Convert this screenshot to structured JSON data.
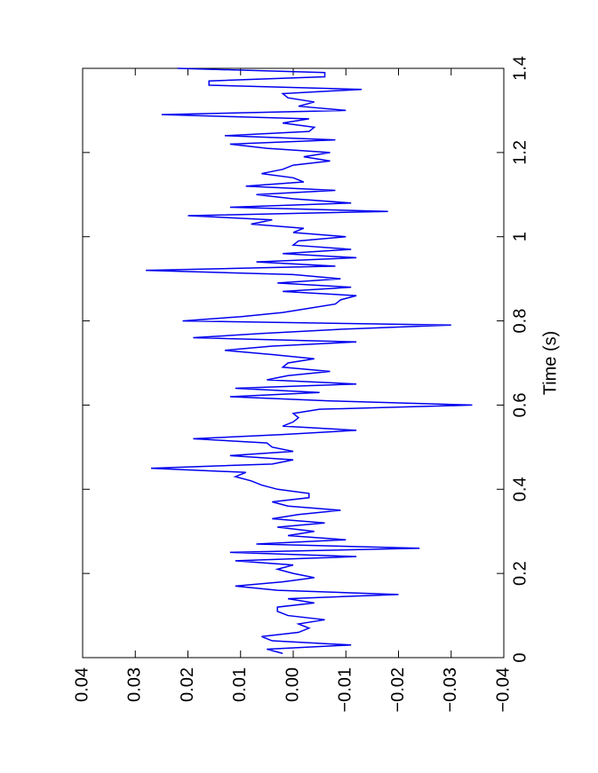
{
  "chart_data": {
    "type": "line",
    "orientation": "rotated",
    "x_label": "Time (s)",
    "x": [
      0.01,
      0.02,
      0.03,
      0.04,
      0.05,
      0.06,
      0.07,
      0.08,
      0.09,
      0.1,
      0.11,
      0.12,
      0.13,
      0.14,
      0.15,
      0.16,
      0.17,
      0.18,
      0.19,
      0.2,
      0.21,
      0.22,
      0.23,
      0.24,
      0.25,
      0.26,
      0.27,
      0.28,
      0.29,
      0.3,
      0.31,
      0.32,
      0.33,
      0.34,
      0.35,
      0.36,
      0.37,
      0.38,
      0.39,
      0.4,
      0.41,
      0.42,
      0.43,
      0.44,
      0.45,
      0.46,
      0.47,
      0.48,
      0.49,
      0.5,
      0.51,
      0.52,
      0.53,
      0.54,
      0.55,
      0.56,
      0.57,
      0.58,
      0.59,
      0.6,
      0.61,
      0.62,
      0.63,
      0.64,
      0.65,
      0.66,
      0.67,
      0.68,
      0.69,
      0.7,
      0.71,
      0.72,
      0.73,
      0.74,
      0.75,
      0.76,
      0.77,
      0.78,
      0.79,
      0.8,
      0.81,
      0.82,
      0.83,
      0.84,
      0.85,
      0.86,
      0.87,
      0.88,
      0.89,
      0.9,
      0.91,
      0.92,
      0.93,
      0.94,
      0.95,
      0.96,
      0.97,
      0.98,
      0.99,
      1.0,
      1.01,
      1.02,
      1.03,
      1.04,
      1.05,
      1.06,
      1.07,
      1.08,
      1.09,
      1.1,
      1.11,
      1.12,
      1.13,
      1.14,
      1.15,
      1.16,
      1.17,
      1.18,
      1.19,
      1.2,
      1.21,
      1.22,
      1.23,
      1.24,
      1.25,
      1.26,
      1.27,
      1.28,
      1.29,
      1.3,
      1.31,
      1.32,
      1.33,
      1.34,
      1.35,
      1.36,
      1.37,
      1.38,
      1.39,
      1.4
    ],
    "series": [
      {
        "color": "#0000ee",
        "values": [
          0.002,
          0.005,
          -0.011,
          0.004,
          0.006,
          -0.001,
          -0.003,
          -0.001,
          -0.006,
          0.001,
          0.003,
          0.003,
          -0.004,
          0.001,
          -0.02,
          0.003,
          0.011,
          0.002,
          -0.004,
          0.0,
          0.003,
          0.0,
          0.011,
          -0.012,
          0.012,
          -0.024,
          0.007,
          -0.01,
          0.001,
          -0.004,
          0.003,
          -0.006,
          0.004,
          -0.001,
          -0.009,
          0.001,
          0.004,
          -0.003,
          -0.003,
          0.003,
          0.006,
          0.008,
          0.011,
          0.009,
          0.027,
          0.004,
          0.0,
          0.012,
          0.0,
          0.004,
          0.005,
          0.019,
          0.002,
          -0.012,
          0.002,
          0.0,
          -0.001,
          0.0,
          -0.005,
          -0.034,
          -0.007,
          0.012,
          -0.005,
          0.011,
          -0.012,
          0.005,
          0.001,
          -0.007,
          0.002,
          0.001,
          -0.004,
          0.004,
          0.013,
          0.004,
          -0.012,
          0.019,
          0.006,
          -0.009,
          -0.03,
          0.021,
          0.01,
          0.002,
          -0.003,
          -0.008,
          -0.009,
          -0.012,
          0.002,
          -0.011,
          0.003,
          -0.009,
          0.0,
          0.028,
          -0.008,
          0.007,
          -0.012,
          0.002,
          -0.011,
          0.0,
          -0.001,
          -0.01,
          0.0,
          -0.002,
          0.008,
          0.004,
          0.02,
          -0.018,
          0.012,
          -0.011,
          0.0,
          0.007,
          -0.008,
          0.009,
          -0.002,
          0.0,
          0.006,
          0.002,
          0.0,
          -0.007,
          -0.002,
          -0.007,
          0.005,
          0.012,
          -0.008,
          0.013,
          -0.003,
          -0.004,
          0.002,
          -0.003,
          0.025,
          -0.01,
          -0.001,
          -0.004,
          0.001,
          0.002,
          -0.013,
          0.016,
          0.016,
          -0.006,
          -0.006,
          0.022
        ]
      }
    ],
    "xlim": [
      0,
      1.4
    ],
    "xticks": [
      0,
      0.2,
      0.4,
      0.6,
      0.8,
      1,
      1.2,
      1.4
    ],
    "ylim": [
      -0.04,
      0.04
    ],
    "yticks": [
      0.04,
      0.03,
      0.02,
      0.01,
      {
        "value": 0,
        "label": "0.00"
      },
      {
        "value": -0.01,
        "label": "−0.01"
      },
      {
        "value": -0.02,
        "label": "−0.02"
      },
      {
        "value": -0.03,
        "label": "−0.03"
      },
      {
        "value": -0.04,
        "label": "−0.04"
      }
    ]
  }
}
